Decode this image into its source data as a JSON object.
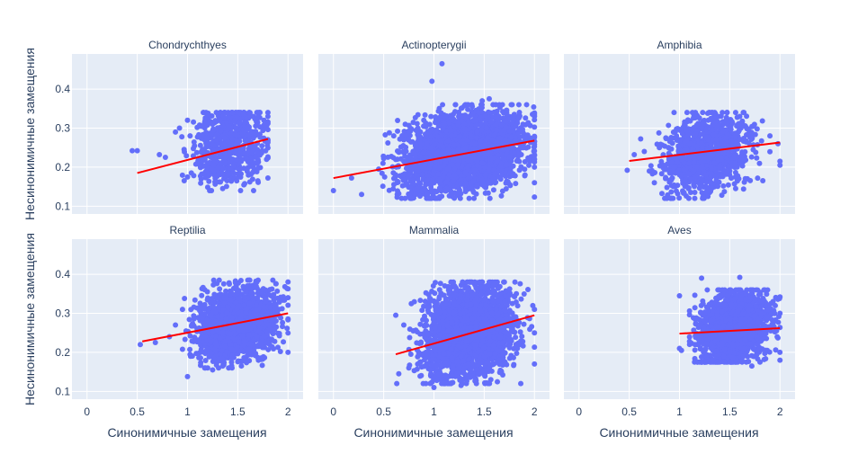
{
  "chart_data": {
    "type": "scatter",
    "xlabel": "Синонимичные замещения",
    "ylabel": "Несинонимичные замещения",
    "xlim": [
      -0.15,
      2.15
    ],
    "ylim": [
      0.08,
      0.49
    ],
    "xticks": [
      0,
      0.5,
      1,
      1.5,
      2
    ],
    "xtick_labels": [
      "0",
      "0.5",
      "1",
      "1.5",
      "2"
    ],
    "yticks": [
      0.1,
      0.2,
      0.3,
      0.4
    ],
    "ytick_labels": [
      "0.1",
      "0.2",
      "0.3",
      "0.4"
    ],
    "grid": true,
    "colors": {
      "points": "#636efa",
      "trend": "#ff0000",
      "plot_bg": "#e5ecf6",
      "text": "#2a3f5f"
    },
    "panels": [
      {
        "title": "Chondrychthyes",
        "trend": {
          "x": [
            0.5,
            1.8
          ],
          "y": [
            0.185,
            0.272
          ]
        },
        "cloud": {
          "n": 650,
          "x_center": 1.42,
          "x_spread": 0.18,
          "y_center": 0.255,
          "y_spread": 0.05,
          "x_range": [
            0.85,
            1.8
          ],
          "y_range": [
            0.14,
            0.34
          ]
        },
        "points": [
          [
            0.45,
            0.242
          ],
          [
            0.5,
            0.242
          ],
          [
            0.72,
            0.232
          ],
          [
            0.78,
            0.225
          ],
          [
            0.88,
            0.29
          ],
          [
            0.92,
            0.3
          ],
          [
            1.0,
            0.32
          ],
          [
            1.45,
            0.34
          ],
          [
            1.35,
            0.145
          ],
          [
            1.7,
            0.165
          ],
          [
            1.62,
            0.162
          ],
          [
            1.8,
            0.33
          ]
        ]
      },
      {
        "title": "Actinopterygii",
        "trend": {
          "x": [
            0.0,
            2.0
          ],
          "y": [
            0.172,
            0.268
          ]
        },
        "cloud": {
          "n": 2600,
          "x_center": 1.3,
          "x_spread": 0.3,
          "y_center": 0.24,
          "y_spread": 0.05,
          "x_range": [
            0.35,
            2.0
          ],
          "y_range": [
            0.12,
            0.36
          ]
        },
        "points": [
          [
            0.0,
            0.14
          ],
          [
            0.18,
            0.172
          ],
          [
            0.28,
            0.13
          ],
          [
            0.45,
            0.195
          ],
          [
            0.5,
            0.222
          ],
          [
            0.7,
            0.27
          ],
          [
            0.6,
            0.28
          ],
          [
            0.84,
            0.3
          ],
          [
            0.98,
            0.42
          ],
          [
            1.08,
            0.465
          ],
          [
            1.48,
            0.37
          ],
          [
            1.55,
            0.375
          ],
          [
            2.0,
            0.16
          ],
          [
            2.0,
            0.2
          ],
          [
            2.0,
            0.23
          ]
        ]
      },
      {
        "title": "Amphibia",
        "trend": {
          "x": [
            0.5,
            2.0
          ],
          "y": [
            0.216,
            0.263
          ]
        },
        "cloud": {
          "n": 1000,
          "x_center": 1.28,
          "x_spread": 0.22,
          "y_center": 0.235,
          "y_spread": 0.05,
          "x_range": [
            0.6,
            1.9
          ],
          "y_range": [
            0.12,
            0.34
          ]
        },
        "points": [
          [
            0.48,
            0.192
          ],
          [
            0.55,
            0.232
          ],
          [
            0.65,
            0.24
          ],
          [
            0.7,
            0.19
          ],
          [
            0.75,
            0.16
          ],
          [
            0.8,
            0.25
          ],
          [
            1.05,
            0.31
          ],
          [
            1.3,
            0.34
          ],
          [
            1.6,
            0.33
          ],
          [
            1.98,
            0.26
          ],
          [
            2.0,
            0.215
          ],
          [
            2.0,
            0.205
          ],
          [
            1.9,
            0.28
          ]
        ]
      },
      {
        "title": "Reptilia",
        "trend": {
          "x": [
            0.55,
            2.0
          ],
          "y": [
            0.228,
            0.3
          ]
        },
        "cloud": {
          "n": 1600,
          "x_center": 1.5,
          "x_spread": 0.2,
          "y_center": 0.275,
          "y_spread": 0.045,
          "x_range": [
            0.95,
            2.0
          ],
          "y_range": [
            0.16,
            0.385
          ]
        },
        "points": [
          [
            0.53,
            0.22
          ],
          [
            0.68,
            0.225
          ],
          [
            0.82,
            0.24
          ],
          [
            0.88,
            0.27
          ],
          [
            0.95,
            0.31
          ],
          [
            0.97,
            0.338
          ],
          [
            1.0,
            0.138
          ],
          [
            1.25,
            0.155
          ],
          [
            1.35,
            0.165
          ],
          [
            1.6,
            0.385
          ],
          [
            2.0,
            0.2
          ],
          [
            2.0,
            0.34
          ]
        ]
      },
      {
        "title": "Mammalia",
        "trend": {
          "x": [
            0.62,
            2.0
          ],
          "y": [
            0.195,
            0.295
          ]
        },
        "cloud": {
          "n": 2200,
          "x_center": 1.35,
          "x_spread": 0.22,
          "y_center": 0.255,
          "y_spread": 0.06,
          "x_range": [
            0.65,
            2.0
          ],
          "y_range": [
            0.12,
            0.38
          ]
        },
        "points": [
          [
            0.62,
            0.295
          ],
          [
            0.63,
            0.12
          ],
          [
            0.65,
            0.145
          ],
          [
            0.7,
            0.27
          ],
          [
            0.75,
            0.16
          ],
          [
            1.0,
            0.11
          ],
          [
            1.27,
            0.115
          ],
          [
            1.55,
            0.38
          ],
          [
            1.82,
            0.35
          ],
          [
            2.0,
            0.17
          ],
          [
            2.0,
            0.25
          ],
          [
            2.0,
            0.31
          ]
        ]
      },
      {
        "title": "Aves",
        "trend": {
          "x": [
            1.0,
            2.0
          ],
          "y": [
            0.248,
            0.262
          ]
        },
        "cloud": {
          "n": 1500,
          "x_center": 1.55,
          "x_spread": 0.18,
          "y_center": 0.265,
          "y_spread": 0.045,
          "x_range": [
            1.1,
            2.0
          ],
          "y_range": [
            0.175,
            0.36
          ]
        },
        "points": [
          [
            1.0,
            0.345
          ],
          [
            1.0,
            0.21
          ],
          [
            1.02,
            0.205
          ],
          [
            1.18,
            0.175
          ],
          [
            1.22,
            0.39
          ],
          [
            1.6,
            0.392
          ],
          [
            1.85,
            0.36
          ],
          [
            2.0,
            0.18
          ],
          [
            2.0,
            0.3
          ],
          [
            1.72,
            0.165
          ]
        ]
      }
    ]
  }
}
